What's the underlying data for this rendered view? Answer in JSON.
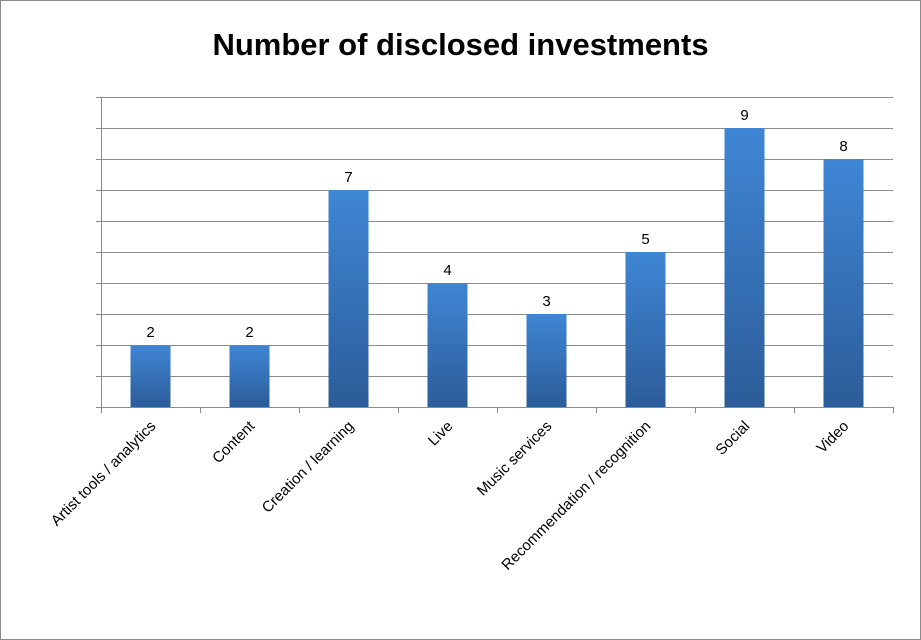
{
  "chart_data": {
    "type": "bar",
    "title": "Number of disclosed investments",
    "categories": [
      "Artist tools / analytics",
      "Content",
      "Creation / learning",
      "Live",
      "Music services",
      "Recommendation / recognition",
      "Social",
      "Video"
    ],
    "values": [
      2,
      2,
      7,
      4,
      3,
      5,
      9,
      8
    ],
    "ylim": [
      0,
      10
    ],
    "y_tick_step": 1,
    "y_tick_labels_shown": false,
    "grid": true,
    "legend": "none",
    "data_labels": true,
    "colors": {
      "bar_top": "#3f86d4",
      "bar_bottom": "#2c5c99",
      "grid": "#8c8c8c",
      "axis": "#8c8c8c"
    }
  }
}
